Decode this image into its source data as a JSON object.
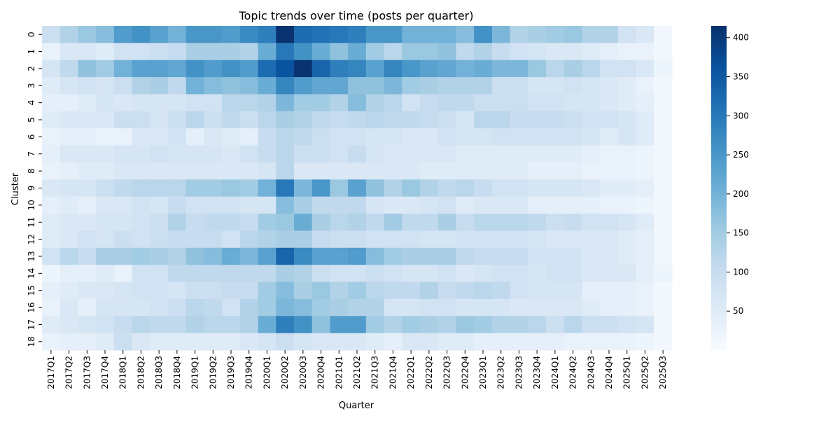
{
  "chart_data": {
    "type": "heatmap",
    "title": "Topic trends over time (posts per quarter)",
    "xlabel": "Quarter",
    "ylabel": "Cluster",
    "x_categories": [
      "2017Q1",
      "2017Q2",
      "2017Q3",
      "2017Q4",
      "2018Q1",
      "2018Q2",
      "2018Q3",
      "2018Q4",
      "2019Q1",
      "2019Q2",
      "2019Q3",
      "2019Q4",
      "2020Q1",
      "2020Q2",
      "2020Q3",
      "2020Q4",
      "2021Q1",
      "2021Q2",
      "2021Q3",
      "2021Q4",
      "2022Q1",
      "2022Q2",
      "2022Q3",
      "2022Q4",
      "2023Q1",
      "2023Q2",
      "2023Q3",
      "2023Q4",
      "2024Q1",
      "2024Q2",
      "2024Q3",
      "2024Q4",
      "2025Q1",
      "2025Q2",
      "2025Q3"
    ],
    "y_categories": [
      "0",
      "1",
      "2",
      "3",
      "4",
      "5",
      "6",
      "7",
      "8",
      "9",
      "10",
      "11",
      "12",
      "13",
      "14",
      "15",
      "16",
      "17",
      "18"
    ],
    "values": [
      [
        90,
        130,
        160,
        180,
        240,
        260,
        230,
        200,
        250,
        250,
        240,
        270,
        290,
        410,
        320,
        310,
        300,
        290,
        250,
        250,
        200,
        200,
        200,
        180,
        260,
        190,
        130,
        140,
        150,
        160,
        130,
        130,
        80,
        60,
        10
      ],
      [
        30,
        60,
        60,
        50,
        80,
        80,
        90,
        100,
        140,
        140,
        140,
        130,
        210,
        300,
        260,
        210,
        170,
        210,
        150,
        120,
        160,
        160,
        170,
        110,
        130,
        100,
        80,
        70,
        60,
        60,
        50,
        40,
        30,
        30,
        10
      ],
      [
        70,
        110,
        170,
        150,
        200,
        230,
        230,
        220,
        260,
        240,
        260,
        240,
        320,
        360,
        410,
        330,
        290,
        280,
        230,
        280,
        250,
        230,
        220,
        200,
        210,
        190,
        190,
        160,
        120,
        140,
        120,
        80,
        80,
        60,
        20
      ],
      [
        50,
        70,
        80,
        70,
        90,
        130,
        140,
        110,
        200,
        180,
        170,
        180,
        210,
        280,
        240,
        220,
        220,
        170,
        170,
        190,
        150,
        140,
        130,
        130,
        130,
        90,
        90,
        70,
        70,
        80,
        70,
        60,
        50,
        30,
        10
      ],
      [
        40,
        40,
        50,
        70,
        60,
        70,
        70,
        70,
        80,
        80,
        120,
        120,
        130,
        190,
        150,
        150,
        130,
        180,
        130,
        120,
        80,
        100,
        110,
        110,
        90,
        90,
        90,
        80,
        80,
        70,
        70,
        60,
        50,
        40,
        10
      ],
      [
        50,
        60,
        60,
        60,
        90,
        90,
        70,
        90,
        120,
        90,
        110,
        90,
        120,
        140,
        130,
        110,
        100,
        110,
        120,
        110,
        110,
        100,
        90,
        70,
        120,
        120,
        100,
        100,
        100,
        90,
        80,
        80,
        70,
        50,
        10
      ],
      [
        30,
        40,
        40,
        30,
        30,
        60,
        60,
        80,
        40,
        60,
        50,
        40,
        100,
        120,
        110,
        90,
        80,
        80,
        70,
        70,
        60,
        60,
        80,
        70,
        70,
        80,
        80,
        80,
        80,
        80,
        70,
        50,
        70,
        50,
        10
      ],
      [
        40,
        60,
        60,
        60,
        70,
        70,
        80,
        70,
        70,
        70,
        60,
        80,
        100,
        120,
        90,
        90,
        80,
        100,
        70,
        60,
        60,
        60,
        60,
        50,
        50,
        50,
        50,
        50,
        50,
        50,
        40,
        30,
        30,
        20,
        10
      ],
      [
        30,
        40,
        50,
        50,
        60,
        60,
        60,
        60,
        60,
        60,
        60,
        60,
        70,
        120,
        60,
        60,
        60,
        60,
        60,
        60,
        60,
        50,
        50,
        50,
        50,
        50,
        50,
        40,
        40,
        40,
        30,
        30,
        30,
        20,
        10
      ],
      [
        60,
        70,
        70,
        90,
        110,
        120,
        120,
        120,
        150,
        150,
        160,
        150,
        200,
        300,
        190,
        250,
        160,
        230,
        170,
        130,
        160,
        130,
        110,
        120,
        100,
        80,
        80,
        70,
        70,
        70,
        60,
        50,
        50,
        40,
        10
      ],
      [
        40,
        50,
        40,
        60,
        60,
        80,
        70,
        100,
        80,
        80,
        80,
        70,
        70,
        180,
        140,
        110,
        110,
        110,
        70,
        60,
        60,
        70,
        80,
        50,
        60,
        60,
        60,
        40,
        40,
        40,
        40,
        30,
        30,
        20,
        10
      ],
      [
        50,
        60,
        60,
        70,
        70,
        80,
        90,
        130,
        100,
        110,
        110,
        100,
        150,
        160,
        210,
        140,
        120,
        130,
        110,
        150,
        110,
        110,
        140,
        100,
        120,
        120,
        120,
        110,
        90,
        100,
        80,
        80,
        70,
        50,
        10
      ],
      [
        50,
        60,
        80,
        70,
        90,
        80,
        90,
        100,
        100,
        100,
        80,
        120,
        130,
        140,
        140,
        100,
        90,
        90,
        80,
        80,
        80,
        70,
        70,
        80,
        80,
        80,
        80,
        70,
        60,
        60,
        60,
        60,
        50,
        40,
        10
      ],
      [
        80,
        120,
        100,
        140,
        140,
        150,
        140,
        130,
        170,
        180,
        210,
        190,
        230,
        330,
        270,
        230,
        230,
        240,
        180,
        150,
        140,
        140,
        140,
        110,
        100,
        100,
        100,
        80,
        80,
        80,
        60,
        60,
        50,
        40,
        10
      ],
      [
        20,
        40,
        40,
        50,
        30,
        80,
        80,
        110,
        110,
        110,
        110,
        110,
        110,
        140,
        130,
        90,
        80,
        80,
        90,
        80,
        70,
        70,
        80,
        60,
        70,
        80,
        80,
        70,
        80,
        80,
        60,
        60,
        60,
        40,
        20
      ],
      [
        40,
        50,
        60,
        60,
        70,
        80,
        80,
        70,
        90,
        90,
        100,
        100,
        150,
        180,
        140,
        160,
        130,
        150,
        120,
        110,
        110,
        130,
        100,
        110,
        120,
        110,
        80,
        70,
        70,
        70,
        40,
        40,
        40,
        30,
        10
      ],
      [
        30,
        60,
        40,
        70,
        70,
        70,
        80,
        90,
        120,
        110,
        80,
        130,
        150,
        190,
        180,
        150,
        140,
        130,
        130,
        70,
        70,
        80,
        80,
        70,
        70,
        70,
        60,
        60,
        60,
        60,
        50,
        40,
        40,
        30,
        10
      ],
      [
        50,
        60,
        70,
        80,
        100,
        120,
        110,
        110,
        130,
        120,
        120,
        130,
        210,
        290,
        260,
        170,
        240,
        240,
        150,
        130,
        150,
        140,
        130,
        160,
        150,
        130,
        130,
        120,
        90,
        120,
        90,
        90,
        80,
        70,
        10
      ],
      [
        30,
        40,
        40,
        50,
        90,
        60,
        50,
        50,
        50,
        50,
        50,
        60,
        70,
        90,
        70,
        60,
        60,
        60,
        50,
        40,
        60,
        60,
        50,
        50,
        40,
        40,
        40,
        40,
        40,
        30,
        30,
        30,
        30,
        20,
        10
      ]
    ],
    "colorbar": {
      "colormap": "Blues",
      "vmin": 0,
      "vmax": 415,
      "ticks": [
        "50",
        "100",
        "150",
        "200",
        "250",
        "300",
        "350",
        "400"
      ]
    }
  }
}
